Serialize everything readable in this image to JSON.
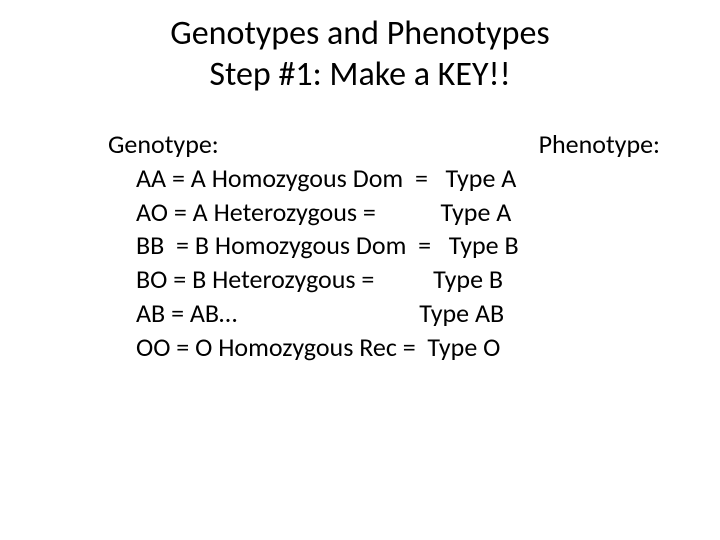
{
  "title_line1": "Genotypes and Phenotypes",
  "title_line2": "Step #1: Make a KEY!!",
  "headers": {
    "genotype": "Genotype:",
    "phenotype": "Phenotype:"
  },
  "rows": [
    "AA = A Homozygous Dom  =   Type A",
    "AO = A Heterozygous =           Type A",
    "BB  = B Homozygous Dom  =   Type B",
    "BO = B Heterozygous =          Type B",
    "AB = AB…                               Type AB",
    "OO = O Homozygous Rec =  Type O"
  ],
  "colors": {
    "background": "#ffffff",
    "text": "#000000"
  },
  "typography": {
    "title_fontsize": 34,
    "body_fontsize": 26,
    "font_family": "Calibri"
  }
}
